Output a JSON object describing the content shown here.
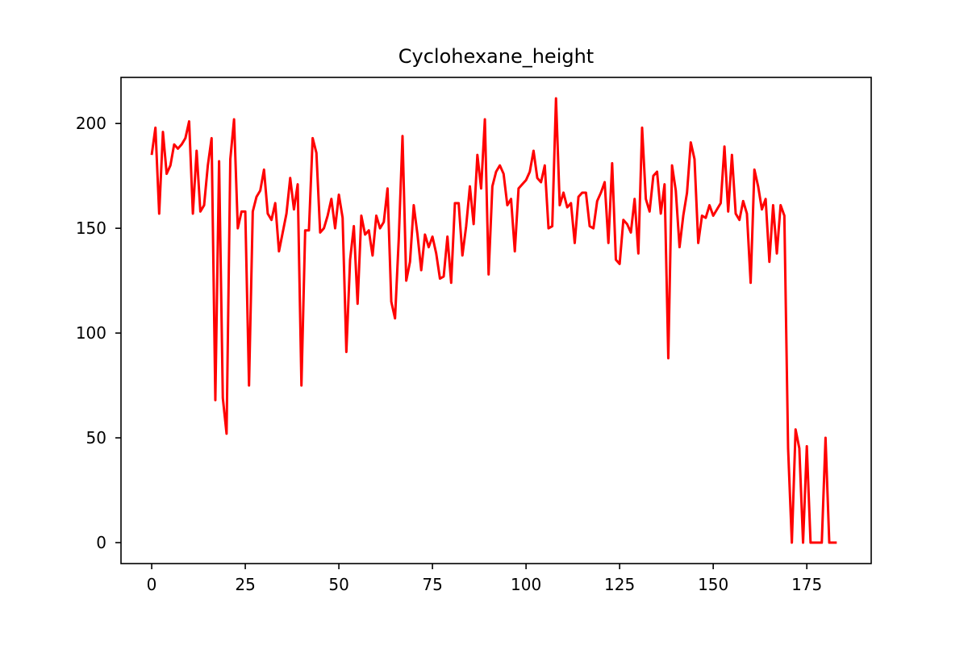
{
  "chart_data": {
    "type": "line",
    "title": "Cyclohexane_height",
    "xlabel": "",
    "ylabel": "",
    "xlim": [
      -8.2,
      192.2
    ],
    "ylim": [
      -10,
      222
    ],
    "xticks": [
      0,
      25,
      50,
      75,
      100,
      125,
      150,
      175
    ],
    "yticks": [
      0,
      50,
      100,
      150,
      200
    ],
    "grid": false,
    "legend": "none",
    "series": [
      {
        "color": "#ff0000",
        "x": [
          0,
          1,
          2,
          3,
          4,
          5,
          6,
          7,
          8,
          9,
          10,
          11,
          12,
          13,
          14,
          15,
          16,
          17,
          18,
          19,
          20,
          21,
          22,
          23,
          24,
          25,
          26,
          27,
          28,
          29,
          30,
          31,
          32,
          33,
          34,
          35,
          36,
          37,
          38,
          39,
          40,
          41,
          42,
          43,
          44,
          45,
          46,
          47,
          48,
          49,
          50,
          51,
          52,
          53,
          54,
          55,
          56,
          57,
          58,
          59,
          60,
          61,
          62,
          63,
          64,
          65,
          66,
          67,
          68,
          69,
          70,
          71,
          72,
          73,
          74,
          75,
          76,
          77,
          78,
          79,
          80,
          81,
          82,
          83,
          84,
          85,
          86,
          87,
          88,
          89,
          90,
          91,
          92,
          93,
          94,
          95,
          96,
          97,
          98,
          99,
          100,
          101,
          102,
          103,
          104,
          105,
          106,
          107,
          108,
          109,
          110,
          111,
          112,
          113,
          114,
          115,
          116,
          117,
          118,
          119,
          120,
          121,
          122,
          123,
          124,
          125,
          126,
          127,
          128,
          129,
          130,
          131,
          132,
          133,
          134,
          135,
          136,
          137,
          138,
          139,
          140,
          141,
          142,
          143,
          144,
          145,
          146,
          147,
          148,
          149,
          150,
          151,
          152,
          153,
          154,
          155,
          156,
          157,
          158,
          159,
          160,
          161,
          162,
          163,
          164,
          165,
          166,
          167,
          168,
          169,
          170,
          171,
          172,
          173,
          174,
          175,
          176,
          177,
          178,
          179,
          180,
          181,
          182,
          183
        ],
        "y": [
          185,
          198,
          157,
          196,
          176,
          180,
          190,
          188,
          190,
          193,
          201,
          157,
          187,
          158,
          161,
          180,
          193,
          68,
          182,
          69,
          52,
          183,
          202,
          150,
          158,
          158,
          75,
          158,
          165,
          168,
          178,
          157,
          154,
          162,
          139,
          148,
          157,
          174,
          159,
          171,
          75,
          149,
          149,
          193,
          186,
          148,
          150,
          156,
          164,
          150,
          166,
          155,
          91,
          135,
          151,
          114,
          156,
          147,
          149,
          137,
          156,
          150,
          153,
          169,
          115,
          107,
          145,
          194,
          125,
          134,
          161,
          147,
          130,
          147,
          141,
          146,
          138,
          126,
          127,
          146,
          124,
          162,
          162,
          137,
          151,
          170,
          152,
          185,
          169,
          202,
          128,
          170,
          177,
          180,
          176,
          161,
          164,
          139,
          169,
          171,
          173,
          177,
          187,
          174,
          172,
          180,
          150,
          151,
          212,
          161,
          167,
          160,
          162,
          143,
          165,
          167,
          167,
          151,
          150,
          163,
          167,
          172,
          143,
          181,
          135,
          133,
          154,
          152,
          148,
          164,
          138,
          198,
          164,
          158,
          175,
          177,
          157,
          171,
          88,
          180,
          168,
          141,
          156,
          167,
          191,
          183,
          143,
          156,
          155,
          161,
          156,
          159,
          162,
          189,
          158,
          185,
          157,
          154,
          163,
          157,
          124,
          178,
          170,
          159,
          164,
          134,
          161,
          138,
          161,
          156,
          45,
          0,
          54,
          45,
          0,
          46,
          0,
          0,
          0,
          0,
          50,
          0,
          0,
          0
        ]
      }
    ]
  }
}
